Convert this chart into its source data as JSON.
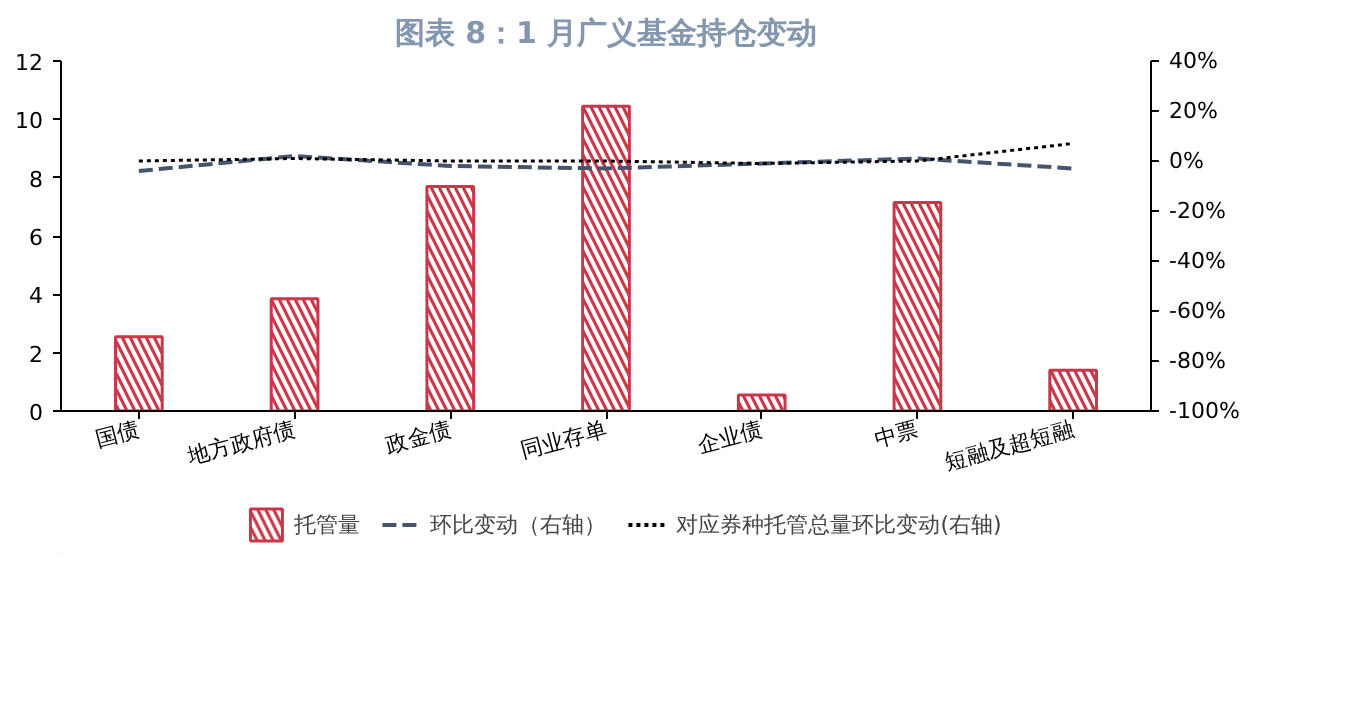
{
  "chart_data": {
    "type": "bar",
    "title": "图表 8：1 月广义基金持仓变动",
    "categories": [
      "国债",
      "地方政府债",
      "政金债",
      "同业存单",
      "企业债",
      "中票",
      "短融及超短融"
    ],
    "series": [
      {
        "name": "托管量",
        "color": "#c8374a",
        "values": [
          2.55,
          3.85,
          7.7,
          10.45,
          0.55,
          7.15,
          1.4
        ]
      },
      {
        "name": "环比变动（右轴）",
        "type": "line",
        "axis": "y2",
        "line_style": "dashed",
        "color": "#44546a",
        "values": [
          -4,
          2,
          -2,
          -3,
          -1,
          1,
          -3
        ]
      },
      {
        "name": "对应券种托管总量环比变动(右轴)",
        "type": "line",
        "axis": "y2",
        "line_style": "dotted",
        "color": "#000000",
        "values": [
          0,
          1,
          0,
          0,
          -1,
          0,
          7
        ]
      }
    ],
    "ylim": [
      0,
      12
    ],
    "yticks": [
      0,
      2,
      4,
      6,
      8,
      10,
      12
    ],
    "y2lim": [
      -100,
      40
    ],
    "y2ticks": [
      {
        "value": -100,
        "label": "-100%"
      },
      {
        "value": -80,
        "label": "-80%"
      },
      {
        "value": -60,
        "label": "-60%"
      },
      {
        "value": -40,
        "label": "-40%"
      },
      {
        "value": -20,
        "label": "-20%"
      },
      {
        "value": 0,
        "label": "0%"
      },
      {
        "value": 20,
        "label": "20%"
      },
      {
        "value": 40,
        "label": "40%"
      }
    ],
    "grid": false,
    "legend": "bottom"
  }
}
